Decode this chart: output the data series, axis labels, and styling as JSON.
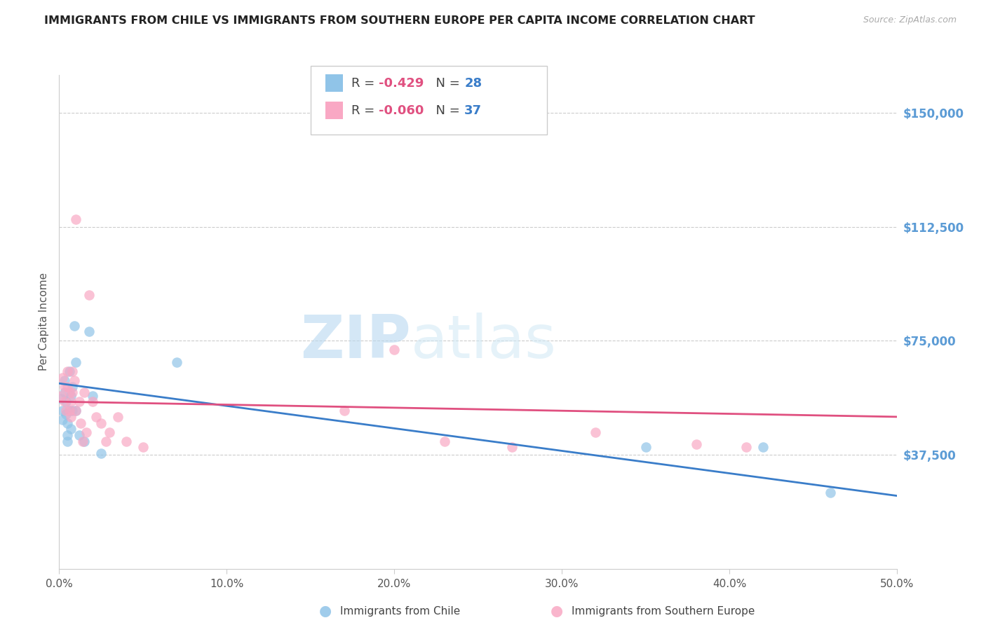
{
  "title": "IMMIGRANTS FROM CHILE VS IMMIGRANTS FROM SOUTHERN EUROPE PER CAPITA INCOME CORRELATION CHART",
  "source": "Source: ZipAtlas.com",
  "ylabel": "Per Capita Income",
  "xlabel_ticks": [
    "0.0%",
    "10.0%",
    "20.0%",
    "30.0%",
    "40.0%",
    "50.0%"
  ],
  "xlabel_vals": [
    0.0,
    0.1,
    0.2,
    0.3,
    0.4,
    0.5
  ],
  "ytick_vals": [
    0,
    37500,
    75000,
    112500,
    150000
  ],
  "ytick_labels": [
    "",
    "$37,500",
    "$75,000",
    "$112,500",
    "$150,000"
  ],
  "xlim": [
    0.0,
    0.5
  ],
  "ylim": [
    0,
    162500
  ],
  "legend_entry1": {
    "R": "-0.429",
    "N": "28",
    "color": "#90c4e8"
  },
  "legend_entry2": {
    "R": "-0.060",
    "N": "37",
    "color": "#f9a8c4"
  },
  "watermark_zip": "ZIP",
  "watermark_atlas": "atlas",
  "chile_x": [
    0.001,
    0.002,
    0.002,
    0.003,
    0.003,
    0.004,
    0.004,
    0.005,
    0.005,
    0.005,
    0.006,
    0.006,
    0.007,
    0.007,
    0.008,
    0.008,
    0.009,
    0.01,
    0.01,
    0.012,
    0.015,
    0.018,
    0.02,
    0.025,
    0.07,
    0.35,
    0.42,
    0.46
  ],
  "chile_y": [
    56000,
    52000,
    49000,
    62000,
    58000,
    55000,
    51000,
    48000,
    44000,
    42000,
    65000,
    52000,
    57000,
    46000,
    60000,
    52000,
    80000,
    68000,
    52000,
    44000,
    42000,
    78000,
    57000,
    38000,
    68000,
    40000,
    40000,
    25000
  ],
  "se_x": [
    0.001,
    0.002,
    0.003,
    0.003,
    0.004,
    0.005,
    0.005,
    0.006,
    0.006,
    0.007,
    0.007,
    0.008,
    0.008,
    0.009,
    0.01,
    0.01,
    0.012,
    0.013,
    0.014,
    0.015,
    0.016,
    0.018,
    0.02,
    0.022,
    0.025,
    0.028,
    0.03,
    0.035,
    0.04,
    0.05,
    0.17,
    0.2,
    0.23,
    0.27,
    0.32,
    0.38,
    0.41
  ],
  "se_y": [
    57000,
    63000,
    60000,
    55000,
    52000,
    65000,
    60000,
    58000,
    52000,
    55000,
    50000,
    65000,
    58000,
    62000,
    115000,
    52000,
    55000,
    48000,
    42000,
    58000,
    45000,
    90000,
    55000,
    50000,
    48000,
    42000,
    45000,
    50000,
    42000,
    40000,
    52000,
    72000,
    42000,
    40000,
    45000,
    41000,
    40000
  ],
  "chile_line_x": [
    0.0,
    0.5
  ],
  "chile_line_y": [
    61000,
    24000
  ],
  "se_line_x": [
    0.0,
    0.5
  ],
  "se_line_y": [
    55000,
    50000
  ],
  "background_color": "#ffffff",
  "grid_color": "#cccccc",
  "chile_dot_color": "#90c4e8",
  "se_dot_color": "#f9a8c4",
  "chile_line_color": "#3a7dc9",
  "se_line_color": "#e05080"
}
